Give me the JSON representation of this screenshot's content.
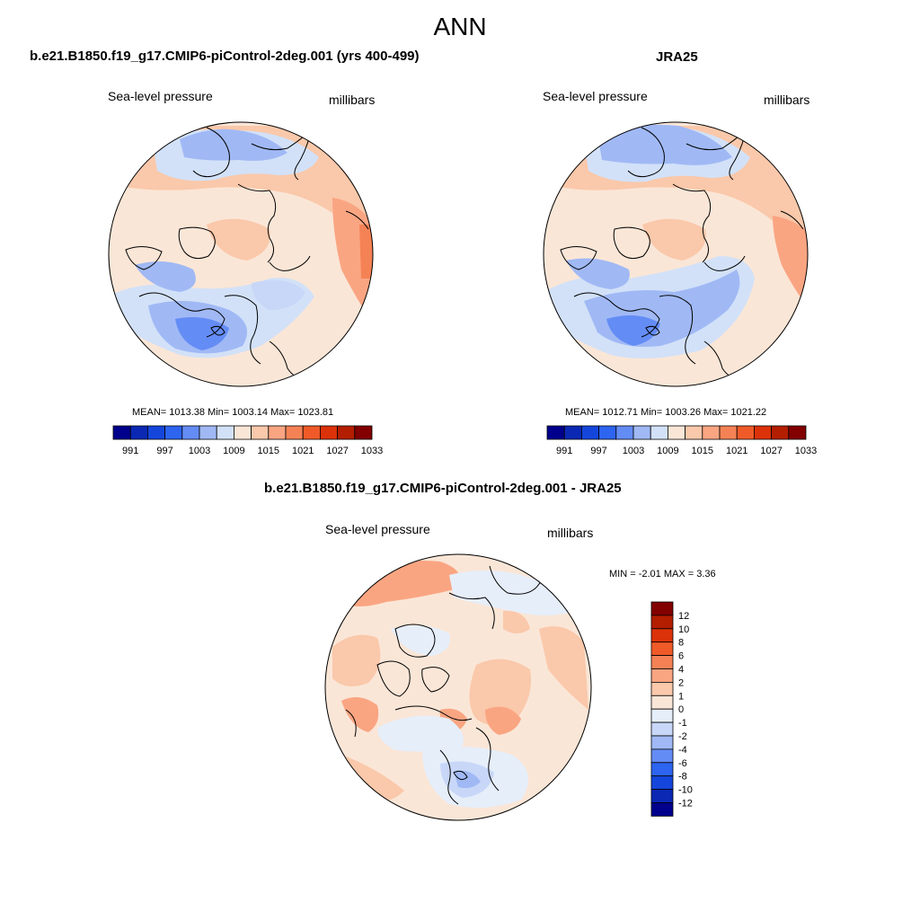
{
  "figure": {
    "title": "ANN"
  },
  "panels": [
    {
      "id": "model",
      "title": "b.e21.B1850.f19_g17.CMIP6-piControl-2deg.001 (yrs 400-499)",
      "variable_label": "Sea-level pressure",
      "units_label": "millibars",
      "stats_text": "MEAN= 1013.38  Min= 1003.14  Max= 1023.81",
      "projection": "polar-stereographic-north"
    },
    {
      "id": "obs",
      "title": "JRA25",
      "variable_label": "Sea-level pressure",
      "units_label": "millibars",
      "stats_text": "MEAN= 1012.71  Min= 1003.26  Max= 1021.22",
      "projection": "polar-stereographic-north"
    },
    {
      "id": "diff",
      "title": "b.e21.B1850.f19_g17.CMIP6-piControl-2deg.001 - JRA25",
      "variable_label": "Sea-level pressure",
      "units_label": "millibars",
      "stats_text": "MIN =  -2.01 MAX =   3.36",
      "projection": "polar-stereographic-north"
    }
  ],
  "colorbar_abs": {
    "orientation": "horizontal",
    "tick_labels": [
      "991",
      "997",
      "1003",
      "1009",
      "1015",
      "1021",
      "1027",
      "1033"
    ],
    "colors": [
      "#00008c",
      "#0a28b4",
      "#1446dc",
      "#2d64f0",
      "#648cf5",
      "#a0b9f5",
      "#d2e1f8",
      "#fae6d7",
      "#fac8aa",
      "#faa582",
      "#f58255",
      "#f05a28",
      "#dc320a",
      "#b41e00",
      "#820000"
    ]
  },
  "colorbar_diff": {
    "orientation": "vertical",
    "tick_labels": [
      "12",
      "10",
      "8",
      "6",
      "4",
      "2",
      "1",
      "0",
      "-1",
      "-2",
      "-4",
      "-6",
      "-8",
      "-10",
      "-12"
    ],
    "colors": [
      "#820000",
      "#b41e00",
      "#dc320a",
      "#f05a28",
      "#f58255",
      "#faa582",
      "#fac8aa",
      "#fae6d7",
      "#e6eefa",
      "#c8d7f8",
      "#a0b9f5",
      "#648cf5",
      "#2d64f0",
      "#1446dc",
      "#0a28b4",
      "#00008c"
    ]
  }
}
